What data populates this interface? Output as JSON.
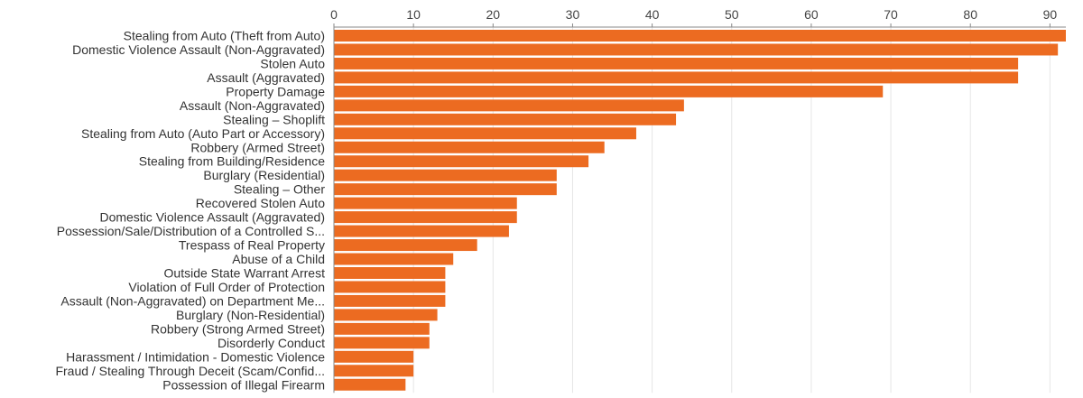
{
  "colors": {
    "bar": "#ec6b21",
    "grid": "#e6e6e6",
    "axis": "#888888"
  },
  "chart_data": {
    "type": "bar",
    "orientation": "horizontal",
    "categories": [
      "Stealing from Auto (Theft from Auto)",
      "Domestic Violence Assault (Non-Aggravated)",
      "Stolen Auto",
      "Assault (Aggravated)",
      "Property Damage",
      "Assault (Non-Aggravated)",
      "Stealing – Shoplift",
      "Stealing from Auto (Auto Part or Accessory)",
      "Robbery (Armed Street)",
      "Stealing from Building/Residence",
      "Burglary (Residential)",
      "Stealing – Other",
      "Recovered Stolen Auto",
      "Domestic Violence Assault (Aggravated)",
      "Possession/Sale/Distribution of a Controlled S...",
      "Trespass of Real Property",
      "Abuse of a Child",
      "Outside State Warrant Arrest",
      "Violation of Full Order of Protection",
      "Assault (Non-Aggravated) on Department Me...",
      "Burglary (Non-Residential)",
      "Robbery (Strong Armed Street)",
      "Disorderly Conduct",
      "Harassment / Intimidation - Domestic Violence",
      "Fraud / Stealing Through Deceit (Scam/Confid...",
      "Possession of Illegal Firearm"
    ],
    "values": [
      92,
      91,
      86,
      86,
      69,
      44,
      43,
      38,
      34,
      32,
      28,
      28,
      23,
      23,
      22,
      18,
      15,
      14,
      14,
      14,
      13,
      12,
      12,
      10,
      10,
      9
    ],
    "xlim": [
      0,
      92
    ],
    "x_ticks": [
      0,
      10,
      20,
      30,
      40,
      50,
      60,
      70,
      80,
      90
    ],
    "x_axis_position": "top",
    "grid": true,
    "title": "",
    "xlabel": "",
    "ylabel": ""
  }
}
